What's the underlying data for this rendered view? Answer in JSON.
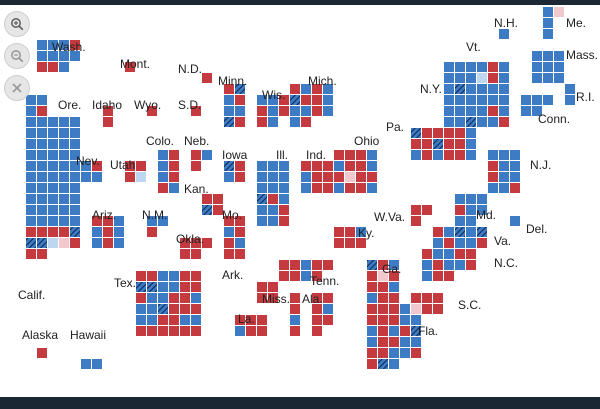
{
  "toolbar": {
    "zoom_in_icon": "zoom-in-magnifier-icon",
    "zoom_out_icon": "zoom-out-magnifier-icon",
    "close_icon": "close-x-icon"
  },
  "colors": {
    "democrat": "#3d7bc4",
    "republican": "#c43a3f",
    "lean_democrat": "#bcd7ef",
    "lean_republican": "#f1c9cc",
    "toss_up_hatch": "#0f2a55",
    "background": "#ffffff"
  },
  "legend_note": "",
  "states": [
    {
      "label": "Wash.",
      "cells": [
        "D",
        "D",
        "D",
        "R",
        "D",
        "D",
        "D",
        "D",
        "R",
        "R",
        "D"
      ]
    },
    {
      "label": "Ore.",
      "cells": [
        "D",
        "D",
        "D",
        "R"
      ]
    },
    {
      "label": "Calif.",
      "cells": [
        "D",
        "D",
        "D",
        "D",
        "D",
        "D",
        "D",
        "D",
        "D",
        "D",
        "D",
        "D",
        "D",
        "D",
        "D",
        "D",
        "D",
        "D",
        "D",
        "D",
        "D",
        "D",
        "D",
        "D",
        "D",
        "D",
        "D",
        "D",
        "D",
        "D",
        "D",
        "D",
        "D",
        "D",
        "D",
        "D",
        "D",
        "D",
        "D",
        "D",
        "D",
        "D",
        "D",
        "D",
        "D",
        "D",
        "D",
        "D",
        "D",
        "D",
        "R",
        "R",
        "R",
        "R",
        "T",
        "T",
        "T",
        "LD",
        "LR",
        "R",
        "R",
        "R"
      ]
    },
    {
      "label": "Idaho",
      "cells": [
        "R",
        "R"
      ]
    },
    {
      "label": "Nev.",
      "cells": [
        "D",
        "R",
        "D",
        "D"
      ]
    },
    {
      "label": "Mont.",
      "cells": [
        "R"
      ]
    },
    {
      "label": "Wyo.",
      "cells": [
        "R"
      ]
    },
    {
      "label": "Utah",
      "cells": [
        "R",
        "R",
        "R",
        "LD"
      ]
    },
    {
      "label": "Ariz.",
      "cells": [
        "R",
        "R",
        "D",
        "D",
        "R",
        "D",
        "D",
        "R",
        "D"
      ]
    },
    {
      "label": "Colo.",
      "cells": [
        "D",
        "R",
        "D",
        "R",
        "D",
        "R",
        "R",
        "D"
      ]
    },
    {
      "label": "N.M.",
      "cells": [
        "D",
        "D",
        "R"
      ]
    },
    {
      "label": "N.D.",
      "cells": [
        "R"
      ]
    },
    {
      "label": "S.D.",
      "cells": [
        "R"
      ]
    },
    {
      "label": "Neb.",
      "cells": [
        "R",
        "D",
        "R"
      ]
    },
    {
      "label": "Kan.",
      "cells": [
        "R",
        "R",
        "T",
        "R"
      ]
    },
    {
      "label": "Okla.",
      "cells": [
        "R",
        "R",
        "R",
        "R",
        "R"
      ]
    },
    {
      "label": "Tex.",
      "cells": [
        "R",
        "R",
        "D",
        "D",
        "R",
        "R",
        "T",
        "T",
        "D",
        "D",
        "R",
        "R",
        "R",
        "D",
        "D",
        "R",
        "R",
        "D",
        "D",
        "D",
        "T",
        "R",
        "R",
        "R",
        "D",
        "D",
        "R",
        "R",
        "D",
        "D",
        "R",
        "R",
        "R",
        "R",
        "R",
        "R"
      ]
    },
    {
      "label": "Minn.",
      "cells": [
        "R",
        "T",
        "D",
        "R",
        "D",
        "D",
        "T",
        "R"
      ]
    },
    {
      "label": "Iowa",
      "cells": [
        "T",
        "R",
        "D",
        "R"
      ]
    },
    {
      "label": "Mo.",
      "cells": [
        "R",
        "R",
        "D",
        "R",
        "R",
        "D",
        "R",
        "R"
      ]
    },
    {
      "label": "Ark.",
      "cells": [
        "R",
        "R",
        "R",
        "R"
      ]
    },
    {
      "label": "La.",
      "cells": [
        "R",
        "R",
        "R",
        "D",
        "R",
        "R"
      ]
    },
    {
      "label": "Wis.",
      "cells": [
        "D",
        "D",
        "R",
        "R",
        "D",
        "R",
        "R",
        "D"
      ]
    },
    {
      "label": "Ill.",
      "cells": [
        "D",
        "D",
        "D",
        "D",
        "D",
        "D",
        "D",
        "D",
        "D",
        "T",
        "R",
        "D",
        "D",
        "D",
        "R",
        "D",
        "D",
        "R"
      ]
    },
    {
      "label": "Mich.",
      "cells": [
        "R",
        "D",
        "R",
        "D",
        "T",
        "R",
        "R",
        "D",
        "D",
        "D",
        "R",
        "D",
        "D",
        "R"
      ]
    },
    {
      "label": "Ind.",
      "cells": [
        "R",
        "R",
        "R",
        "D",
        "R",
        "R",
        "D",
        "R",
        "R"
      ]
    },
    {
      "label": "Ohio",
      "cells": [
        "R",
        "R",
        "R",
        "D",
        "D",
        "R",
        "R",
        "D",
        "R",
        "LR",
        "R",
        "R",
        "D",
        "R",
        "R",
        "D"
      ]
    },
    {
      "label": "Ky.",
      "cells": [
        "R",
        "R",
        "D",
        "R",
        "R",
        "R"
      ]
    },
    {
      "label": "Tenn.",
      "cells": [
        "R",
        "R",
        "D",
        "R",
        "R",
        "R",
        "R",
        "D",
        "R"
      ]
    },
    {
      "label": "Miss.",
      "cells": [
        "R",
        "R",
        "D",
        "R"
      ]
    },
    {
      "label": "Ala.",
      "cells": [
        "R",
        "R",
        "R",
        "D",
        "R",
        "R",
        "R"
      ]
    },
    {
      "label": "Ga.",
      "cells": [
        "T",
        "R",
        "D",
        "R",
        "LR",
        "R",
        "R",
        "R",
        "D",
        "D",
        "R",
        "R",
        "D",
        "R"
      ]
    },
    {
      "label": "Fla.",
      "cells": [
        "R",
        "R",
        "R",
        "D",
        "D",
        "R",
        "R",
        "R",
        "D",
        "R",
        "D",
        "R",
        "D",
        "R",
        "T",
        "D",
        "R",
        "R",
        "D",
        "D",
        "R",
        "R",
        "D",
        "D",
        "R",
        "R",
        "T",
        "D"
      ]
    },
    {
      "label": "S.C.",
      "cells": [
        "R",
        "R",
        "R",
        "LR",
        "R",
        "R",
        "D"
      ]
    },
    {
      "label": "N.C.",
      "cells": [
        "R",
        "R",
        "D",
        "R",
        "R",
        "D",
        "R",
        "D",
        "D",
        "R",
        "D",
        "R",
        "R"
      ]
    },
    {
      "label": "Va.",
      "cells": [
        "R",
        "D",
        "T",
        "D",
        "T",
        "D",
        "R",
        "D",
        "D",
        "R",
        "D"
      ]
    },
    {
      "label": "W.Va.",
      "cells": [
        "R",
        "R",
        "R"
      ]
    },
    {
      "label": "Md.",
      "cells": [
        "D",
        "D",
        "D",
        "R",
        "D",
        "D",
        "D",
        "D"
      ]
    },
    {
      "label": "Del.",
      "cells": [
        "D"
      ]
    },
    {
      "label": "Pa.",
      "cells": [
        "T",
        "R",
        "R",
        "D",
        "R",
        "D",
        "R",
        "R",
        "T",
        "R",
        "R",
        "D",
        "D",
        "R",
        "D",
        "R",
        "R",
        "D"
      ]
    },
    {
      "label": "N.J.",
      "cells": [
        "D",
        "D",
        "D",
        "R",
        "D",
        "D",
        "R",
        "D",
        "D",
        "D",
        "D",
        "R"
      ]
    },
    {
      "label": "N.Y.",
      "cells": [
        "D",
        "D",
        "D",
        "D",
        "R",
        "D",
        "D",
        "D",
        "D",
        "LD",
        "R",
        "D",
        "D",
        "T",
        "D",
        "D",
        "D",
        "D",
        "D",
        "D",
        "D",
        "D",
        "D",
        "D",
        "D",
        "D",
        "D",
        "D",
        "R",
        "D",
        "D",
        "D",
        "T",
        "D",
        "D",
        "R",
        "R"
      ]
    },
    {
      "label": "Conn.",
      "cells": [
        "D",
        "D",
        "D",
        "D",
        "D"
      ]
    },
    {
      "label": "R.I.",
      "cells": [
        "D",
        "D"
      ]
    },
    {
      "label": "Mass.",
      "cells": [
        "D",
        "D",
        "D",
        "D",
        "D",
        "D",
        "D",
        "D",
        "D"
      ]
    },
    {
      "label": "Vt.",
      "cells": [
        "D"
      ]
    },
    {
      "label": "N.H.",
      "cells": [
        "D",
        "D"
      ]
    },
    {
      "label": "Me.",
      "cells": [
        "D",
        "LR"
      ]
    },
    {
      "label": "Alaska",
      "cells": [
        "R"
      ]
    },
    {
      "label": "Hawaii",
      "cells": [
        "D",
        "D"
      ]
    }
  ]
}
